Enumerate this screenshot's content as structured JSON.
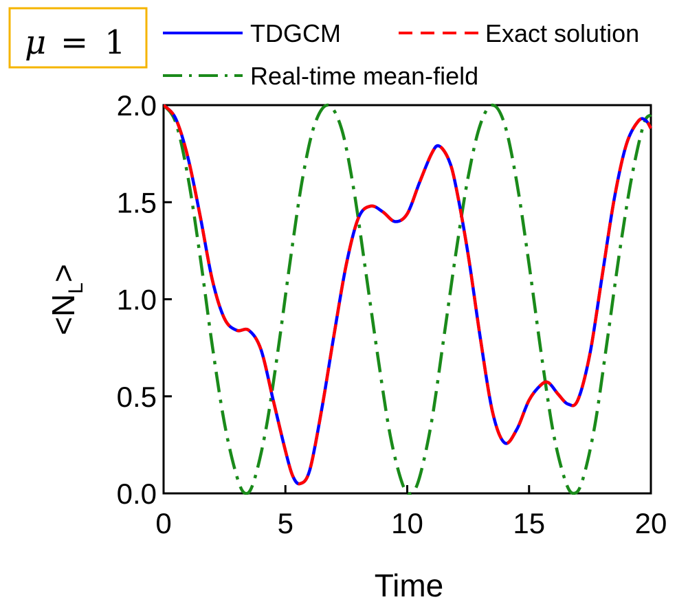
{
  "annotation": {
    "var": "μ",
    "eq": "=",
    "val": "1",
    "box_color": "#f5b400"
  },
  "chart_data": {
    "type": "line",
    "xlabel": "Time",
    "ylabel": "<N",
    "ylabel_sub": "L",
    "ylabel_close": ">",
    "xlim": [
      0,
      20
    ],
    "ylim": [
      0,
      2
    ],
    "xticks": [
      0,
      5,
      10,
      15,
      20
    ],
    "yticks": [
      0.0,
      0.5,
      1.0,
      1.5,
      2.0
    ],
    "xtick_labels": [
      "0",
      "5",
      "10",
      "15",
      "20"
    ],
    "ytick_labels": [
      "0.0",
      "0.5",
      "1.0",
      "1.5",
      "2.0"
    ],
    "legend_position": "top",
    "grid": false,
    "series": [
      {
        "name": "TDGCM",
        "color": "#0000ff",
        "style": "solid",
        "x": [
          0,
          0.5,
          1.0,
          1.5,
          2.0,
          2.5,
          3.0,
          3.5,
          4.0,
          4.5,
          5.0,
          5.3,
          5.6,
          6.0,
          6.5,
          7.0,
          7.5,
          8.0,
          8.5,
          9.0,
          9.5,
          10.0,
          10.5,
          11.0,
          11.3,
          11.7,
          12.0,
          12.5,
          13.0,
          13.5,
          14.0,
          14.5,
          15.0,
          15.5,
          15.8,
          16.2,
          16.6,
          17.0,
          17.5,
          18.0,
          18.5,
          19.0,
          19.5,
          19.8,
          20.0
        ],
        "y": [
          2.0,
          1.93,
          1.73,
          1.43,
          1.1,
          0.9,
          0.84,
          0.84,
          0.74,
          0.48,
          0.22,
          0.09,
          0.05,
          0.12,
          0.44,
          0.82,
          1.18,
          1.42,
          1.48,
          1.45,
          1.4,
          1.44,
          1.6,
          1.75,
          1.79,
          1.72,
          1.58,
          1.23,
          0.8,
          0.42,
          0.26,
          0.33,
          0.48,
          0.56,
          0.57,
          0.51,
          0.46,
          0.48,
          0.72,
          1.12,
          1.52,
          1.8,
          1.92,
          1.92,
          1.88
        ]
      },
      {
        "name": "Exact solution",
        "color": "#ff0000",
        "style": "dashed",
        "x": [
          0,
          0.5,
          1.0,
          1.5,
          2.0,
          2.5,
          3.0,
          3.5,
          4.0,
          4.5,
          5.0,
          5.3,
          5.6,
          6.0,
          6.5,
          7.0,
          7.5,
          8.0,
          8.5,
          9.0,
          9.5,
          10.0,
          10.5,
          11.0,
          11.3,
          11.7,
          12.0,
          12.5,
          13.0,
          13.5,
          14.0,
          14.5,
          15.0,
          15.5,
          15.8,
          16.2,
          16.6,
          17.0,
          17.5,
          18.0,
          18.5,
          19.0,
          19.5,
          19.8,
          20.0
        ],
        "y": [
          2.0,
          1.93,
          1.73,
          1.43,
          1.1,
          0.9,
          0.84,
          0.84,
          0.74,
          0.48,
          0.22,
          0.09,
          0.05,
          0.12,
          0.44,
          0.82,
          1.18,
          1.42,
          1.48,
          1.45,
          1.4,
          1.44,
          1.6,
          1.75,
          1.79,
          1.72,
          1.58,
          1.23,
          0.8,
          0.42,
          0.26,
          0.33,
          0.48,
          0.56,
          0.57,
          0.51,
          0.46,
          0.48,
          0.72,
          1.12,
          1.52,
          1.8,
          1.92,
          1.92,
          1.88
        ]
      },
      {
        "name": "Real-time mean-field",
        "color": "#1a8a1a",
        "style": "dashdot",
        "x": [
          0,
          0.5,
          1.0,
          1.5,
          2.0,
          2.5,
          3.0,
          3.35,
          3.7,
          4.2,
          4.7,
          5.2,
          5.7,
          6.2,
          6.75,
          7.3,
          7.8,
          8.3,
          8.8,
          9.3,
          9.8,
          10.15,
          10.5,
          11.0,
          11.5,
          12.0,
          12.5,
          13.0,
          13.5,
          14.0,
          14.5,
          15.0,
          15.5,
          16.0,
          16.5,
          16.85,
          17.2,
          17.7,
          18.2,
          18.7,
          19.2,
          19.7,
          20.0
        ],
        "y": [
          2.0,
          1.91,
          1.63,
          1.22,
          0.76,
          0.36,
          0.09,
          0.0,
          0.06,
          0.33,
          0.74,
          1.2,
          1.62,
          1.9,
          2.0,
          1.88,
          1.57,
          1.14,
          0.7,
          0.3,
          0.05,
          0.0,
          0.08,
          0.37,
          0.8,
          1.24,
          1.63,
          1.9,
          2.0,
          1.9,
          1.6,
          1.18,
          0.72,
          0.31,
          0.06,
          0.0,
          0.07,
          0.35,
          0.78,
          1.23,
          1.62,
          1.9,
          1.95
        ]
      }
    ]
  }
}
